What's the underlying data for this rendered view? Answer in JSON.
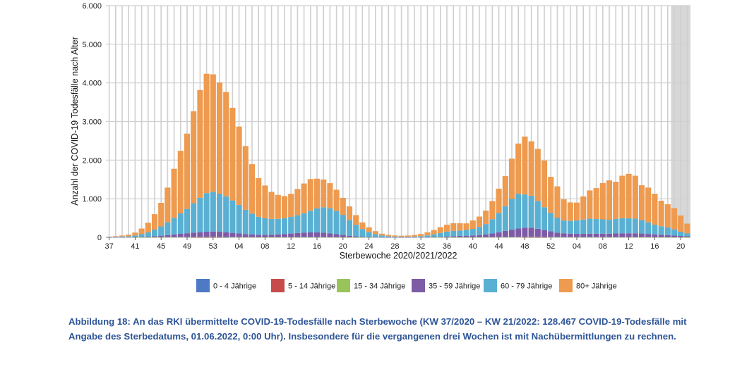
{
  "chart_data": {
    "type": "bar",
    "stacked": true,
    "xlabel": "Sterbewoche 2020/2021/2022",
    "ylabel": "Anzahl der COVID-19 Todesfälle nach Alter",
    "ylim": [
      0,
      6000
    ],
    "yticks": [
      0,
      1000,
      2000,
      3000,
      4000,
      5000,
      6000
    ],
    "ytick_labels": [
      "0",
      "1.000",
      "2.000",
      "3.000",
      "4.000",
      "5.000",
      "6.000"
    ],
    "xtick_labels": [
      "37",
      "41",
      "45",
      "49",
      "53",
      "04",
      "08",
      "12",
      "16",
      "20",
      "24",
      "28",
      "32",
      "36",
      "40",
      "44",
      "48",
      "52",
      "04",
      "08",
      "12",
      "16",
      "20"
    ],
    "grid": true,
    "shaded_region_note": "last 3 weeks (late reporting expected)",
    "colors": {
      "0-4": "#4e79c4",
      "5-14": "#c84b4b",
      "15-34": "#99c45a",
      "35-59": "#7e5ba6",
      "60-79": "#5ab0d3",
      "80+": "#ee9a4f",
      "shade": "#d7d7d7",
      "grid": "#cfcfcf"
    },
    "categories": [
      "37",
      "38",
      "39",
      "40",
      "41",
      "42",
      "43",
      "44",
      "45",
      "46",
      "47",
      "48",
      "49",
      "50",
      "51",
      "52",
      "53",
      "01",
      "02",
      "03",
      "04",
      "05",
      "06",
      "07",
      "08",
      "09",
      "10",
      "11",
      "12",
      "13",
      "14",
      "15",
      "16",
      "17",
      "18",
      "19",
      "20",
      "21",
      "22",
      "23",
      "24",
      "25",
      "26",
      "27",
      "28",
      "29",
      "30",
      "31",
      "32",
      "33",
      "34",
      "35",
      "36",
      "37",
      "38",
      "39",
      "40",
      "41",
      "42",
      "43",
      "44",
      "45",
      "46",
      "47",
      "48",
      "49",
      "50",
      "51",
      "52",
      "01",
      "02",
      "03",
      "04",
      "05",
      "06",
      "07",
      "08",
      "09",
      "10",
      "11",
      "12",
      "13",
      "14",
      "15",
      "16",
      "17",
      "18",
      "19",
      "20",
      "21"
    ],
    "series": [
      {
        "name": "0 - 4 Jährige",
        "values": [
          0,
          0,
          0,
          0,
          0,
          0,
          0,
          0,
          0,
          0,
          0,
          0,
          0,
          0,
          1,
          1,
          1,
          1,
          1,
          0,
          0,
          0,
          0,
          0,
          0,
          0,
          0,
          0,
          0,
          0,
          0,
          0,
          0,
          0,
          0,
          0,
          0,
          0,
          0,
          0,
          0,
          0,
          0,
          0,
          0,
          0,
          0,
          0,
          0,
          0,
          0,
          0,
          0,
          0,
          0,
          0,
          0,
          0,
          0,
          0,
          0,
          0,
          0,
          0,
          0,
          1,
          1,
          1,
          0,
          0,
          0,
          0,
          0,
          0,
          0,
          0,
          0,
          0,
          0,
          0,
          0,
          0,
          0,
          0,
          0,
          0,
          0,
          0,
          0,
          0
        ]
      },
      {
        "name": "5 - 14 Jährige",
        "values": [
          0,
          0,
          0,
          0,
          0,
          0,
          0,
          0,
          0,
          0,
          0,
          0,
          0,
          1,
          1,
          1,
          1,
          1,
          0,
          0,
          0,
          0,
          0,
          0,
          0,
          0,
          0,
          0,
          0,
          0,
          0,
          0,
          0,
          0,
          0,
          0,
          0,
          0,
          0,
          0,
          0,
          0,
          0,
          0,
          0,
          0,
          0,
          0,
          0,
          0,
          0,
          0,
          0,
          0,
          0,
          0,
          0,
          0,
          0,
          0,
          0,
          0,
          0,
          0,
          1,
          1,
          1,
          1,
          0,
          0,
          0,
          0,
          0,
          0,
          0,
          0,
          0,
          0,
          0,
          0,
          0,
          0,
          0,
          0,
          0,
          0,
          0,
          0,
          0,
          0
        ]
      },
      {
        "name": "15 - 34 Jährige",
        "values": [
          0,
          0,
          0,
          0,
          1,
          1,
          1,
          2,
          3,
          4,
          5,
          6,
          6,
          7,
          8,
          9,
          9,
          8,
          7,
          6,
          5,
          4,
          4,
          3,
          3,
          3,
          3,
          3,
          3,
          3,
          4,
          4,
          4,
          4,
          3,
          3,
          2,
          2,
          1,
          1,
          1,
          0,
          0,
          0,
          0,
          0,
          0,
          0,
          0,
          0,
          1,
          1,
          1,
          1,
          2,
          2,
          3,
          3,
          4,
          5,
          6,
          7,
          8,
          9,
          10,
          10,
          9,
          8,
          7,
          6,
          5,
          5,
          5,
          5,
          5,
          5,
          5,
          5,
          5,
          5,
          5,
          5,
          4,
          4,
          3,
          3,
          2,
          2,
          1,
          1
        ]
      },
      {
        "name": "35 - 59 Jährige",
        "values": [
          2,
          3,
          4,
          5,
          8,
          12,
          18,
          28,
          40,
          55,
          70,
          85,
          100,
          115,
          125,
          135,
          140,
          135,
          125,
          110,
          95,
          80,
          70,
          60,
          60,
          65,
          75,
          85,
          95,
          110,
          120,
          125,
          125,
          115,
          100,
          80,
          60,
          40,
          25,
          15,
          10,
          5,
          4,
          3,
          3,
          3,
          3,
          3,
          4,
          5,
          8,
          12,
          18,
          25,
          35,
          40,
          45,
          55,
          70,
          95,
          125,
          160,
          190,
          220,
          240,
          235,
          210,
          180,
          150,
          115,
          100,
          90,
          85,
          85,
          90,
          90,
          90,
          90,
          95,
          100,
          100,
          100,
          95,
          85,
          75,
          65,
          55,
          45,
          35,
          25
        ]
      },
      {
        "name": "60 - 79 Jährige",
        "values": [
          8,
          12,
          18,
          25,
          40,
          70,
          110,
          170,
          240,
          330,
          430,
          530,
          630,
          760,
          890,
          1000,
          1030,
          985,
          930,
          840,
          740,
          630,
          540,
          470,
          430,
          410,
          400,
          410,
          430,
          460,
          500,
          560,
          620,
          660,
          650,
          600,
          520,
          410,
          300,
          200,
          130,
          80,
          45,
          25,
          18,
          14,
          14,
          18,
          28,
          45,
          70,
          100,
          130,
          140,
          140,
          150,
          170,
          210,
          270,
          370,
          500,
          640,
          800,
          900,
          860,
          830,
          720,
          590,
          480,
          390,
          330,
          330,
          350,
          370,
          390,
          380,
          370,
          360,
          380,
          390,
          390,
          380,
          350,
          300,
          250,
          220,
          200,
          160,
          110,
          80
        ]
      },
      {
        "name": "80+ Jährige",
        "values": [
          10,
          15,
          25,
          40,
          75,
          145,
          250,
          400,
          610,
          900,
          1270,
          1620,
          1950,
          2380,
          2790,
          3090,
          3040,
          2880,
          2700,
          2400,
          2030,
          1650,
          1280,
          1000,
          850,
          700,
          620,
          570,
          600,
          680,
          770,
          820,
          770,
          720,
          650,
          550,
          440,
          350,
          250,
          170,
          120,
          75,
          45,
          35,
          28,
          25,
          30,
          40,
          55,
          80,
          110,
          150,
          180,
          200,
          190,
          170,
          220,
          270,
          350,
          470,
          630,
          780,
          1040,
          1300,
          1500,
          1410,
          1350,
          1210,
          930,
          810,
          550,
          480,
          460,
          600,
          730,
          800,
          940,
          1020,
          960,
          1100,
          1150,
          1110,
          900,
          900,
          800,
          660,
          600,
          550,
          420,
          250
        ]
      }
    ]
  },
  "legend": {
    "items": [
      {
        "label": "0 - 4 Jährige",
        "color": "#4e79c4"
      },
      {
        "label": "5 - 14 Jährige",
        "color": "#c84b4b"
      },
      {
        "label": "15 - 34 Jährige",
        "color": "#99c45a"
      },
      {
        "label": "35 - 59 Jährige",
        "color": "#7e5ba6"
      },
      {
        "label": "60 - 79 Jährige",
        "color": "#5ab0d3"
      },
      {
        "label": "80+ Jährige",
        "color": "#ee9a4f"
      }
    ]
  },
  "caption": {
    "text": "Abbildung 18: An das RKI übermittelte COVID-19-Todesfälle nach Sterbewoche (KW 37/2020 – KW 21/2022: 128.467 COVID-19-Todesfälle mit Angabe des Sterbedatums, 01.06.2022, 0:00 Uhr). Insbesondere für die vergangenen drei Wochen ist mit Nachübermittlungen zu rechnen."
  }
}
